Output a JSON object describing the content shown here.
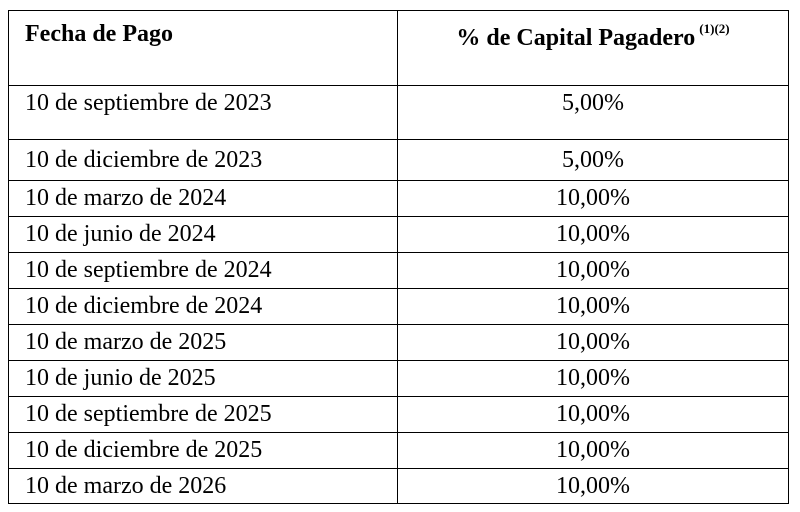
{
  "table": {
    "header": [
      {
        "text": "Fecha de Pago"
      },
      {
        "text": "% de Capital Pagadero",
        "superscript": "(1)(2)"
      }
    ],
    "rows": [
      [
        "10 de septiembre de 2023",
        "5,00%"
      ],
      [
        "10 de diciembre de 2023",
        "5,00%"
      ],
      [
        "10 de marzo de 2024",
        "10,00%"
      ],
      [
        "10 de junio de 2024",
        "10,00%"
      ],
      [
        "10 de septiembre de 2024",
        "10,00%"
      ],
      [
        "10 de diciembre de 2024",
        "10,00%"
      ],
      [
        "10 de marzo de 2025",
        "10,00%"
      ],
      [
        "10 de junio de 2025",
        "10,00%"
      ],
      [
        "10 de septiembre de 2025",
        "10,00%"
      ],
      [
        "10 de diciembre de 2025",
        "10,00%"
      ],
      [
        "10 de marzo de 2026",
        "10,00%"
      ]
    ]
  }
}
